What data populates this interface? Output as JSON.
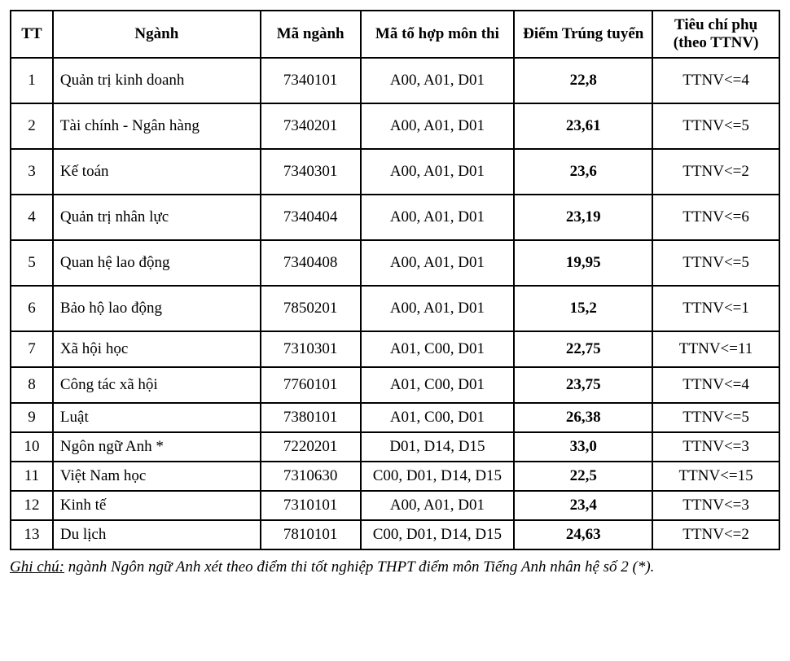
{
  "table": {
    "columns": [
      {
        "key": "tt",
        "label": "TT"
      },
      {
        "key": "major",
        "label": "Ngành"
      },
      {
        "key": "code",
        "label": "Mã ngành"
      },
      {
        "key": "combo",
        "label": "Mã tổ hợp môn thi"
      },
      {
        "key": "score",
        "label": "Điểm Trúng tuyển"
      },
      {
        "key": "aux",
        "label": "Tiêu chí phụ (theo TTNV)"
      }
    ],
    "rows": [
      {
        "tt": "1",
        "major": "Quản trị kinh doanh",
        "code": "7340101",
        "combo": "A00, A01, D01",
        "score": "22,8",
        "aux": "TTNV<=4",
        "h": "tall"
      },
      {
        "tt": "2",
        "major": "Tài chính - Ngân hàng",
        "code": "7340201",
        "combo": "A00, A01, D01",
        "score": "23,61",
        "aux": "TTNV<=5",
        "h": "tall"
      },
      {
        "tt": "3",
        "major": "Kế toán",
        "code": "7340301",
        "combo": "A00, A01, D01",
        "score": "23,6",
        "aux": "TTNV<=2",
        "h": "tall"
      },
      {
        "tt": "4",
        "major": "Quản trị nhân lực",
        "code": "7340404",
        "combo": "A00, A01, D01",
        "score": "23,19",
        "aux": "TTNV<=6",
        "h": "tall"
      },
      {
        "tt": "5",
        "major": "Quan hệ lao động",
        "code": "7340408",
        "combo": "A00, A01, D01",
        "score": "19,95",
        "aux": "TTNV<=5",
        "h": "tall"
      },
      {
        "tt": "6",
        "major": "Bảo hộ lao động",
        "code": "7850201",
        "combo": "A00, A01, D01",
        "score": "15,2",
        "aux": "TTNV<=1",
        "h": "tall"
      },
      {
        "tt": "7",
        "major": "Xã hội học",
        "code": "7310301",
        "combo": "A01, C00, D01",
        "score": "22,75",
        "aux": "TTNV<=11",
        "h": "mid"
      },
      {
        "tt": "8",
        "major": "Công tác xã hội",
        "code": "7760101",
        "combo": "A01, C00, D01",
        "score": "23,75",
        "aux": "TTNV<=4",
        "h": "mid"
      },
      {
        "tt": "9",
        "major": "Luật",
        "code": "7380101",
        "combo": "A01, C00, D01",
        "score": "26,38",
        "aux": "TTNV<=5",
        "h": ""
      },
      {
        "tt": "10",
        "major": "Ngôn ngữ Anh *",
        "code": "7220201",
        "combo": "D01, D14, D15",
        "score": "33,0",
        "aux": "TTNV<=3",
        "h": ""
      },
      {
        "tt": "11",
        "major": "Việt Nam học",
        "code": "7310630",
        "combo": "C00, D01, D14, D15",
        "score": "22,5",
        "aux": "TTNV<=15",
        "h": ""
      },
      {
        "tt": "12",
        "major": "Kinh tế",
        "code": "7310101",
        "combo": "A00, A01, D01",
        "score": "23,4",
        "aux": "TTNV<=3",
        "h": ""
      },
      {
        "tt": "13",
        "major": "Du lịch",
        "code": "7810101",
        "combo": "C00, D01, D14, D15",
        "score": "24,63",
        "aux": "TTNV<=2",
        "h": ""
      }
    ],
    "col_widths_pct": [
      5.5,
      27,
      13,
      20,
      18,
      16.5
    ],
    "border_color": "#000000",
    "background_color": "#ffffff",
    "font_family": "Times New Roman",
    "body_fontsize_pt": 14
  },
  "footnote": {
    "lead": "Ghi chú:",
    "text": "ngành Ngôn ngữ Anh xét theo điểm thi tốt nghiệp THPT điểm môn Tiếng Anh nhân hệ số 2 (*)."
  }
}
